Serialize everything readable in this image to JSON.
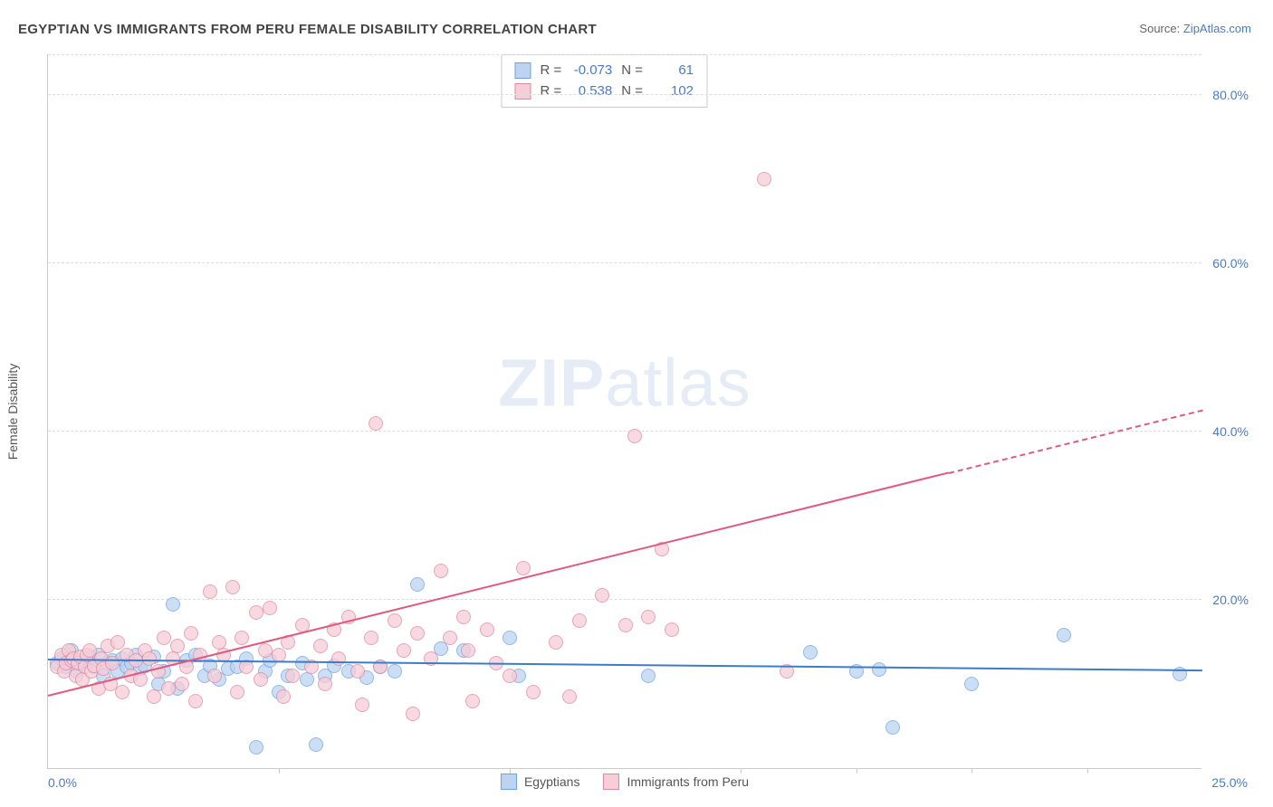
{
  "title": "EGYPTIAN VS IMMIGRANTS FROM PERU FEMALE DISABILITY CORRELATION CHART",
  "source_label": "Source:",
  "source_value": "ZipAtlas.com",
  "ylabel": "Female Disability",
  "watermark_a": "ZIP",
  "watermark_b": "atlas",
  "chart": {
    "type": "scatter",
    "xlim": [
      0,
      25
    ],
    "ylim": [
      0,
      85
    ],
    "xticks": [
      0,
      25
    ],
    "xtick_marks": [
      5,
      10,
      15,
      17.5,
      20,
      22.5
    ],
    "yticks": [
      20,
      40,
      60,
      80
    ],
    "grid_color": "#dddddd",
    "axis_color": "#cccccc",
    "background": "#ffffff",
    "tick_color": "#4a7bc8",
    "point_radius": 8,
    "series": [
      {
        "name": "Egyptians",
        "fill": "#bcd4f0",
        "stroke": "#6fa3e0",
        "line": "#3d7cc9",
        "R": "-0.073",
        "N": "61",
        "trend_y0": 12.8,
        "trend_y1": 11.5,
        "points": [
          [
            0.2,
            12.5
          ],
          [
            0.3,
            13.0
          ],
          [
            0.4,
            12.0
          ],
          [
            0.5,
            14.0
          ],
          [
            0.6,
            11.5
          ],
          [
            0.7,
            12.5
          ],
          [
            0.8,
            12.8
          ],
          [
            0.9,
            13.2
          ],
          [
            1.0,
            12.0
          ],
          [
            1.1,
            13.5
          ],
          [
            1.2,
            11.0
          ],
          [
            1.3,
            12.5
          ],
          [
            1.4,
            12.8
          ],
          [
            1.5,
            11.5
          ],
          [
            1.6,
            13.0
          ],
          [
            1.7,
            12.0
          ],
          [
            1.8,
            12.5
          ],
          [
            1.9,
            13.5
          ],
          [
            2.0,
            11.8
          ],
          [
            2.1,
            12.2
          ],
          [
            2.3,
            13.2
          ],
          [
            2.4,
            10.0
          ],
          [
            2.5,
            11.5
          ],
          [
            2.7,
            19.5
          ],
          [
            2.8,
            9.5
          ],
          [
            3.0,
            12.8
          ],
          [
            3.2,
            13.5
          ],
          [
            3.4,
            11.0
          ],
          [
            3.5,
            12.2
          ],
          [
            3.7,
            10.5
          ],
          [
            3.9,
            11.8
          ],
          [
            4.1,
            12.0
          ],
          [
            4.3,
            13.0
          ],
          [
            4.5,
            2.5
          ],
          [
            4.7,
            11.5
          ],
          [
            4.8,
            12.8
          ],
          [
            5.0,
            9.0
          ],
          [
            5.2,
            11.0
          ],
          [
            5.5,
            12.5
          ],
          [
            5.6,
            10.5
          ],
          [
            5.8,
            2.8
          ],
          [
            6.0,
            11.0
          ],
          [
            6.2,
            12.2
          ],
          [
            6.5,
            11.5
          ],
          [
            6.9,
            10.8
          ],
          [
            7.2,
            12.0
          ],
          [
            7.5,
            11.5
          ],
          [
            8.0,
            21.8
          ],
          [
            8.5,
            14.2
          ],
          [
            9.0,
            14.0
          ],
          [
            10.0,
            15.5
          ],
          [
            10.2,
            11.0
          ],
          [
            13.0,
            11.0
          ],
          [
            16.5,
            13.8
          ],
          [
            17.5,
            11.5
          ],
          [
            18.0,
            11.7
          ],
          [
            18.3,
            4.8
          ],
          [
            20.0,
            10.0
          ],
          [
            22.0,
            15.8
          ],
          [
            24.5,
            11.2
          ]
        ]
      },
      {
        "name": "Immigrants from Peru",
        "fill": "#f6cdd8",
        "stroke": "#e088a0",
        "line": "#e05a80",
        "R": "0.538",
        "N": "102",
        "trend_y0": 8.5,
        "trend_y1": 42.5,
        "trend_solid_end_x": 19.5,
        "points": [
          [
            0.2,
            12.0
          ],
          [
            0.3,
            13.5
          ],
          [
            0.35,
            11.5
          ],
          [
            0.4,
            12.5
          ],
          [
            0.45,
            14.0
          ],
          [
            0.5,
            12.8
          ],
          [
            0.55,
            13.0
          ],
          [
            0.6,
            11.0
          ],
          [
            0.65,
            12.5
          ],
          [
            0.7,
            13.2
          ],
          [
            0.75,
            10.5
          ],
          [
            0.8,
            12.0
          ],
          [
            0.85,
            13.5
          ],
          [
            0.9,
            14.0
          ],
          [
            0.95,
            11.5
          ],
          [
            1.0,
            12.2
          ],
          [
            1.1,
            9.5
          ],
          [
            1.15,
            13.0
          ],
          [
            1.2,
            11.8
          ],
          [
            1.3,
            14.5
          ],
          [
            1.35,
            10.0
          ],
          [
            1.4,
            12.5
          ],
          [
            1.5,
            15.0
          ],
          [
            1.6,
            9.0
          ],
          [
            1.7,
            13.5
          ],
          [
            1.8,
            11.0
          ],
          [
            1.9,
            12.8
          ],
          [
            2.0,
            10.5
          ],
          [
            2.1,
            14.0
          ],
          [
            2.2,
            13.0
          ],
          [
            2.3,
            8.5
          ],
          [
            2.4,
            11.5
          ],
          [
            2.5,
            15.5
          ],
          [
            2.6,
            9.5
          ],
          [
            2.7,
            13.0
          ],
          [
            2.8,
            14.5
          ],
          [
            2.9,
            10.0
          ],
          [
            3.0,
            12.0
          ],
          [
            3.1,
            16.0
          ],
          [
            3.2,
            8.0
          ],
          [
            3.3,
            13.5
          ],
          [
            3.5,
            21.0
          ],
          [
            3.6,
            11.0
          ],
          [
            3.7,
            15.0
          ],
          [
            3.8,
            13.5
          ],
          [
            4.0,
            21.5
          ],
          [
            4.1,
            9.0
          ],
          [
            4.2,
            15.5
          ],
          [
            4.3,
            12.0
          ],
          [
            4.5,
            18.5
          ],
          [
            4.6,
            10.5
          ],
          [
            4.7,
            14.0
          ],
          [
            4.8,
            19.0
          ],
          [
            5.0,
            13.5
          ],
          [
            5.1,
            8.5
          ],
          [
            5.2,
            15.0
          ],
          [
            5.3,
            11.0
          ],
          [
            5.5,
            17.0
          ],
          [
            5.7,
            12.0
          ],
          [
            5.9,
            14.5
          ],
          [
            6.0,
            10.0
          ],
          [
            6.2,
            16.5
          ],
          [
            6.3,
            13.0
          ],
          [
            6.5,
            18.0
          ],
          [
            6.7,
            11.5
          ],
          [
            6.8,
            7.5
          ],
          [
            7.0,
            15.5
          ],
          [
            7.1,
            41.0
          ],
          [
            7.2,
            12.0
          ],
          [
            7.5,
            17.5
          ],
          [
            7.7,
            14.0
          ],
          [
            7.9,
            6.5
          ],
          [
            8.0,
            16.0
          ],
          [
            8.3,
            13.0
          ],
          [
            8.5,
            23.5
          ],
          [
            8.7,
            15.5
          ],
          [
            9.0,
            18.0
          ],
          [
            9.1,
            14.0
          ],
          [
            9.2,
            8.0
          ],
          [
            9.5,
            16.5
          ],
          [
            9.7,
            12.5
          ],
          [
            10.0,
            11.0
          ],
          [
            10.3,
            23.8
          ],
          [
            10.5,
            9.0
          ],
          [
            11.0,
            15.0
          ],
          [
            11.3,
            8.5
          ],
          [
            11.5,
            17.5
          ],
          [
            12.0,
            20.5
          ],
          [
            12.5,
            17.0
          ],
          [
            12.7,
            39.5
          ],
          [
            13.0,
            18.0
          ],
          [
            13.3,
            26.0
          ],
          [
            13.5,
            16.5
          ],
          [
            15.5,
            70.0
          ],
          [
            16.0,
            11.5
          ]
        ]
      }
    ]
  },
  "legend": {
    "a": "Egyptians",
    "b": "Immigrants from Peru"
  },
  "stat_labels": {
    "R": "R  =",
    "N": "N  ="
  }
}
